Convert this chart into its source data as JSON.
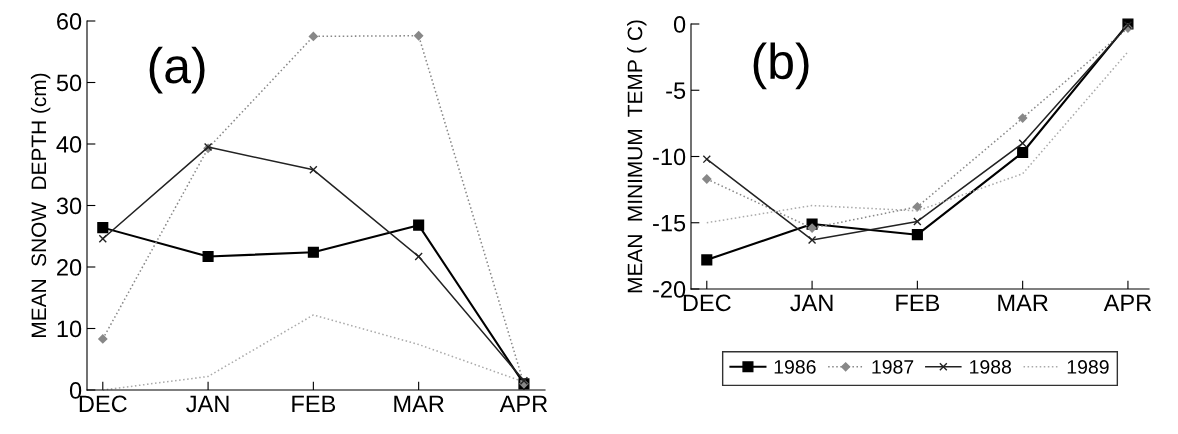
{
  "chart_data": [
    {
      "type": "line",
      "ylabel": "MEAN  SNOW  DEPTH (cm)",
      "annotations": [
        "(a)"
      ],
      "categories": [
        "DEC",
        "JAN",
        "FEB",
        "MAR",
        "APR"
      ],
      "ylim": [
        0,
        60
      ],
      "yticks": [
        0,
        10,
        20,
        30,
        40,
        50,
        60
      ],
      "grid": false,
      "legend": false,
      "series": [
        {
          "color": "#000000",
          "marker": "square",
          "line_style": "solid",
          "values": [
            26.4,
            21.7,
            22.4,
            26.8,
            1.0
          ]
        },
        {
          "color": "#888888",
          "marker": "diamond",
          "line_style": "dotted",
          "values": [
            8.3,
            39.3,
            57.5,
            57.6,
            1.0
          ]
        },
        {
          "color": "#222222",
          "marker": "cross",
          "line_style": "solid",
          "values": [
            24.6,
            39.5,
            35.8,
            21.7,
            1.5
          ]
        },
        {
          "color": "#aaaaaa",
          "marker": "none",
          "line_style": "dotted",
          "values": [
            0,
            2.2,
            12.2,
            7.4,
            1.3
          ]
        }
      ]
    },
    {
      "type": "line",
      "ylabel": "MEAN  MINIMUM  TEMP ( C)",
      "annotations": [
        "(b)"
      ],
      "categories": [
        "DEC",
        "JAN",
        "FEB",
        "MAR",
        "APR"
      ],
      "ylim": [
        -20,
        0
      ],
      "yticks": [
        -20,
        -15,
        -10,
        -5,
        0
      ],
      "grid": false,
      "legend": "bottom",
      "series": [
        {
          "name": "1986",
          "color": "#000000",
          "marker": "square",
          "line_style": "solid",
          "values": [
            -17.8,
            -15.1,
            -15.9,
            -9.7,
            0
          ]
        },
        {
          "name": "1987",
          "color": "#888888",
          "marker": "diamond",
          "line_style": "dotted",
          "values": [
            -11.7,
            -15.4,
            -13.8,
            -7.1,
            -0.3
          ]
        },
        {
          "name": "1988",
          "color": "#222222",
          "marker": "cross",
          "line_style": "solid",
          "values": [
            -10.2,
            -16.3,
            -14.9,
            -9.0,
            -0.1
          ]
        },
        {
          "name": "1989",
          "color": "#aaaaaa",
          "marker": "none",
          "line_style": "dotted",
          "values": [
            -15.0,
            -13.7,
            -14.1,
            -11.3,
            -2.1
          ]
        }
      ]
    }
  ]
}
